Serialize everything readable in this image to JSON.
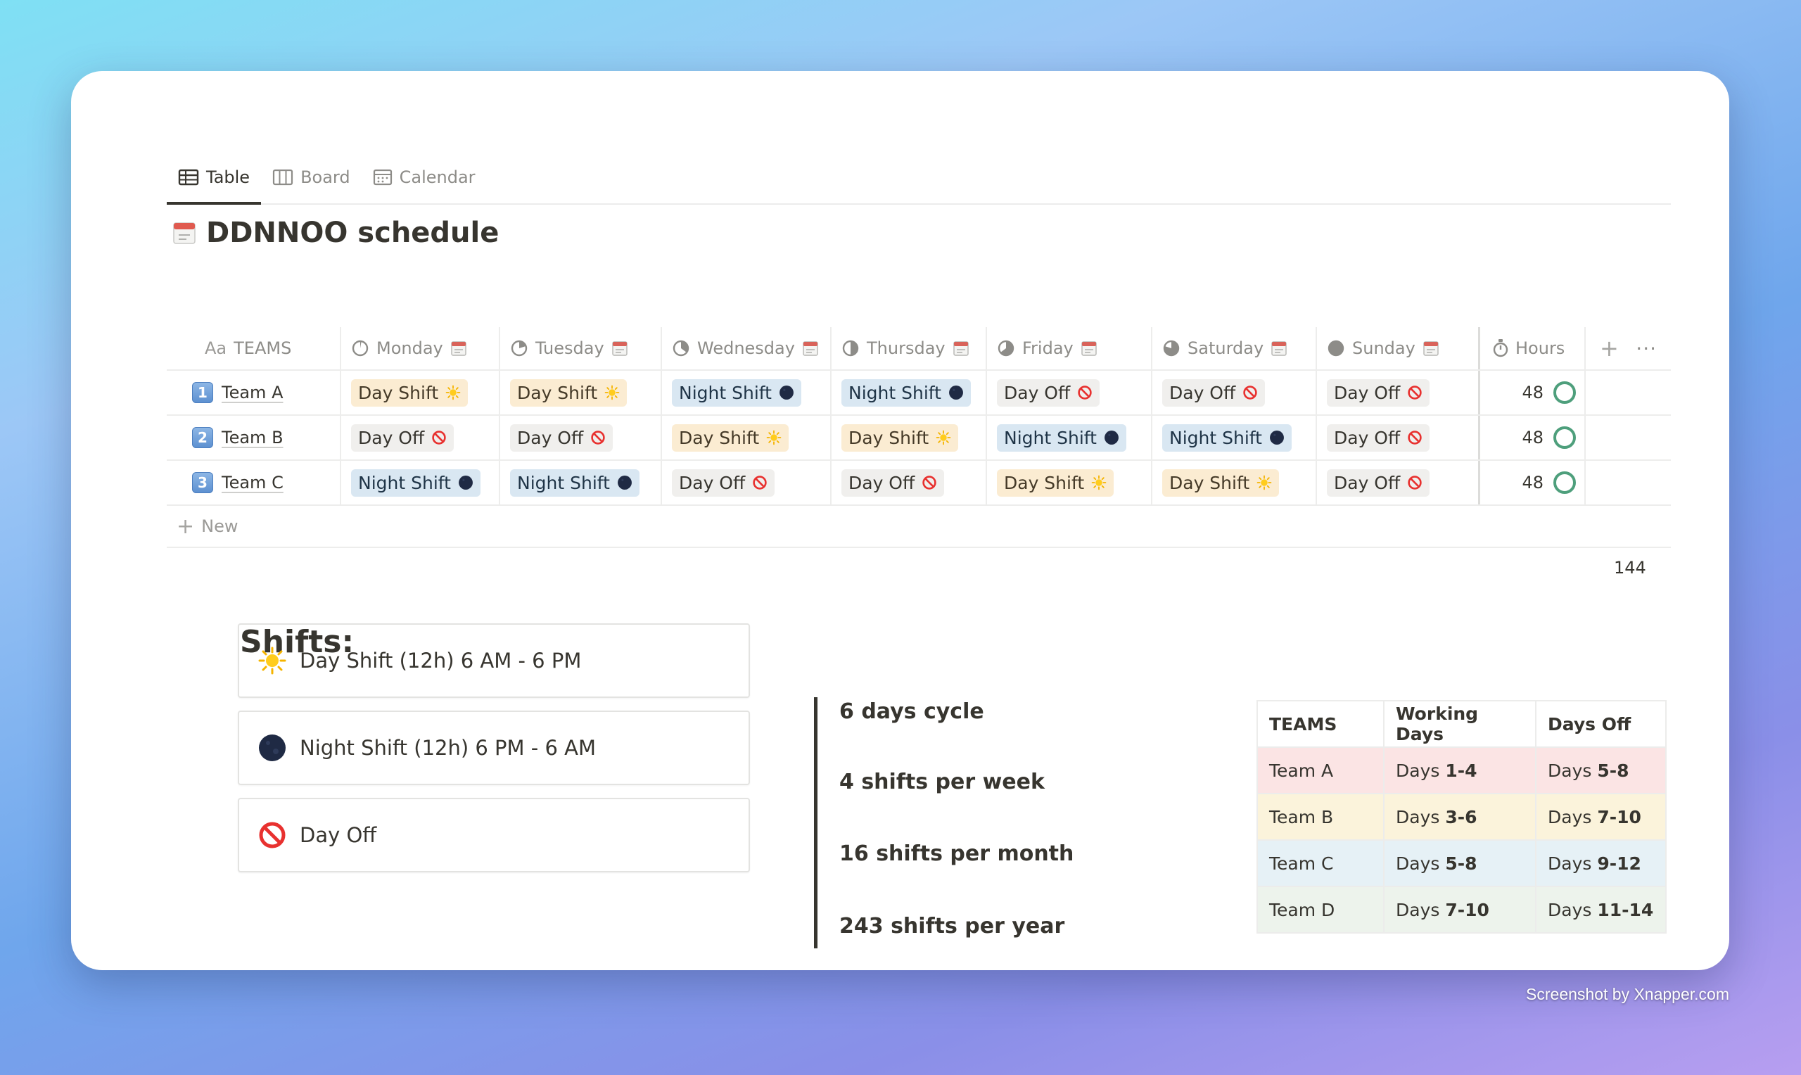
{
  "watermark": "Screenshot by Xnapper.com",
  "tabs": [
    {
      "label": "Table",
      "icon": "table-icon",
      "active": true
    },
    {
      "label": "Board",
      "icon": "board-icon",
      "active": false
    },
    {
      "label": "Calendar",
      "icon": "calendar-icon",
      "active": false
    }
  ],
  "title": "DDNNOO schedule",
  "columns": {
    "teams": "TEAMS",
    "monday": "Monday",
    "tuesday": "Tuesday",
    "wednesday": "Wednesday",
    "thursday": "Thursday",
    "friday": "Friday",
    "saturday": "Saturday",
    "sunday": "Sunday",
    "hours": "Hours"
  },
  "rows": [
    {
      "num": "1",
      "team": "Team A",
      "mon": "Day Shift",
      "tue": "Day Shift",
      "wed": "Night Shift",
      "thu": "Night Shift",
      "fri": "Day Off",
      "sat": "Day Off",
      "sun": "Day Off",
      "hours": "48"
    },
    {
      "num": "2",
      "team": "Team B",
      "mon": "Day Off",
      "tue": "Day Off",
      "wed": "Day Shift",
      "thu": "Day Shift",
      "fri": "Night Shift",
      "sat": "Night Shift",
      "sun": "Day Off",
      "hours": "48"
    },
    {
      "num": "3",
      "team": "Team C",
      "mon": "Night Shift",
      "tue": "Night Shift",
      "wed": "Day Off",
      "thu": "Day Off",
      "fri": "Day Shift",
      "sat": "Day Shift",
      "sun": "Day Off",
      "hours": "48"
    }
  ],
  "new_label": "New",
  "hours_total": "144",
  "shifts_heading": "Shifts:",
  "legend": {
    "day": "Day Shift (12h) 6 AM - 6 PM",
    "night": "Night Shift (12h) 6 PM - 6 AM",
    "off": "Day Off"
  },
  "stats": {
    "cycle": "6 days cycle",
    "week": "4 shifts per week",
    "month": "16 shifts per month",
    "year": "243 shifts per year"
  },
  "summary": {
    "headers": [
      "TEAMS",
      "Working Days",
      "Days Off"
    ],
    "rows": [
      {
        "team": "Team A",
        "work_prefix": "Days",
        "work": "1-4",
        "off_prefix": "Days",
        "off": "5-8"
      },
      {
        "team": "Team B",
        "work_prefix": "Days",
        "work": "3-6",
        "off_prefix": "Days",
        "off": "7-10"
      },
      {
        "team": "Team C",
        "work_prefix": "Days",
        "work": "5-8",
        "off_prefix": "Days",
        "off": "9-12"
      },
      {
        "team": "Team D",
        "work_prefix": "Days",
        "work": "7-10",
        "off_prefix": "Days",
        "off": "11-14"
      }
    ]
  },
  "colors": {
    "day_pill": "#fbecd2",
    "night_pill": "#d9e7f2",
    "off_pill": "#f0efed",
    "ring": "#4e9f7c",
    "team_a": "#fbe4e4",
    "team_b": "#fbf3db",
    "team_c": "#e6f1f6",
    "team_d": "#edf3ec"
  }
}
